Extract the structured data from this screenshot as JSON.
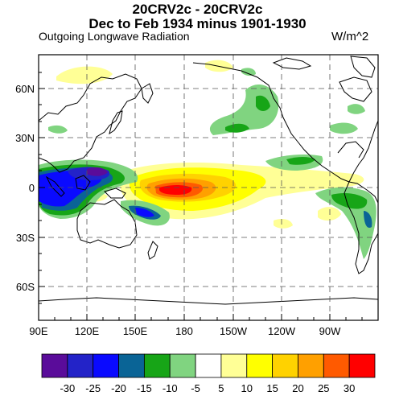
{
  "header": {
    "title_line1": "20CRV2c - 20CRV2c",
    "title_line2": "Dec to Feb 1934 minus 1901-1930",
    "variable": "Outgoing Longwave Radiation",
    "units": "W/m^2"
  },
  "map": {
    "lat_labels": [
      "60N",
      "30N",
      "0",
      "30S",
      "60S"
    ],
    "lon_labels": [
      "90E",
      "120E",
      "150E",
      "180",
      "150W",
      "120W",
      "90W"
    ]
  },
  "colorbar": {
    "labels": [
      "-30",
      "-25",
      "-20",
      "-15",
      "-10",
      "-5",
      "5",
      "10",
      "15",
      "20",
      "25",
      "30"
    ],
    "colors": [
      "#5a0c9a",
      "#2323c8",
      "#0a0aff",
      "#0a6496",
      "#17a517",
      "#80d480",
      "#ffffff",
      "#ffff96",
      "#ffff00",
      "#ffd200",
      "#ffa000",
      "#ff5a00",
      "#ff0000"
    ]
  },
  "chart_data": {
    "type": "heatmap",
    "title": "20CRV2c - 20CRV2c",
    "subtitle": "Dec to Feb 1934 minus 1901-1930",
    "variable": "Outgoing Longwave Radiation",
    "units": "W/m^2",
    "x_range": [
      90,
      300
    ],
    "y_range": [
      -80,
      80
    ],
    "x_ticks": [
      "90E",
      "120E",
      "150E",
      "180",
      "150W",
      "120W",
      "90W"
    ],
    "y_ticks": [
      "60N",
      "30N",
      "0",
      "30S",
      "60S"
    ],
    "grid": true,
    "contour_levels": [
      -30,
      -25,
      -20,
      -15,
      -10,
      -5,
      5,
      10,
      15,
      20,
      25,
      30
    ]
  }
}
